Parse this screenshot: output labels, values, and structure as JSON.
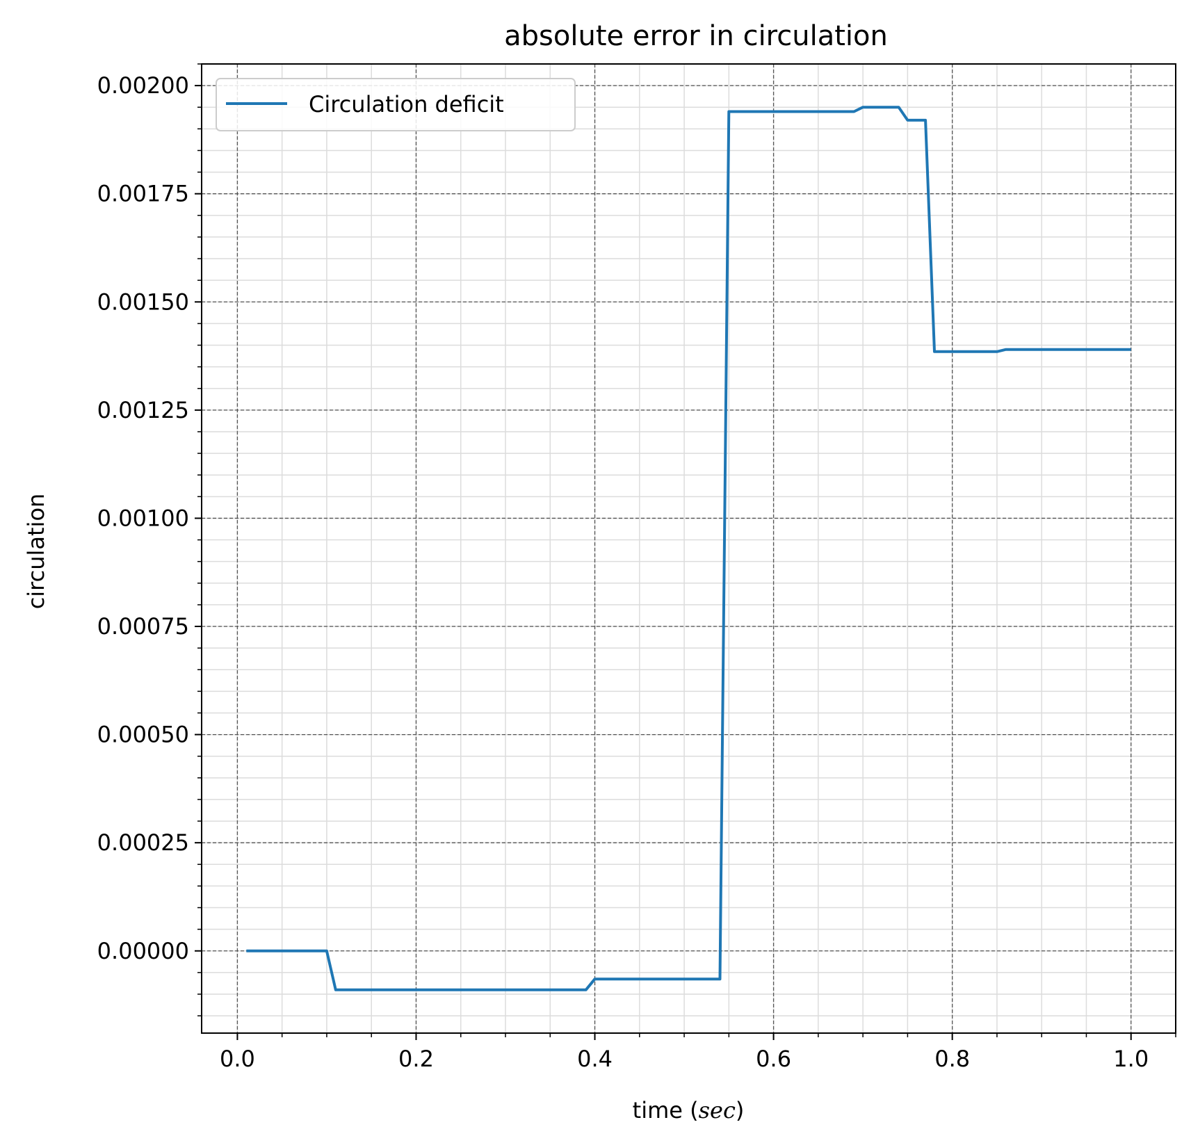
{
  "chart_data": {
    "type": "line",
    "title": "absolute error in circulation",
    "xlabel_main": "time (",
    "xlabel_unit": "sec",
    "xlabel_close": ")",
    "ylabel": "circulation",
    "xlim": [
      -0.04,
      1.05
    ],
    "ylim": [
      -0.00019,
      0.00205
    ],
    "xticks": [
      0.0,
      0.2,
      0.4,
      0.6,
      0.8,
      1.0
    ],
    "xtick_labels": [
      "0.0",
      "0.2",
      "0.4",
      "0.6",
      "0.8",
      "1.0"
    ],
    "yticks": [
      0.0,
      0.00025,
      0.0005,
      0.00075,
      0.001,
      0.00125,
      0.0015,
      0.00175,
      0.002
    ],
    "ytick_labels": [
      "0.00000",
      "0.00025",
      "0.00050",
      "0.00075",
      "0.00100",
      "0.00125",
      "0.00150",
      "0.00175",
      "0.00200"
    ],
    "grid": true,
    "minor_grid": true,
    "legend_position": "top-left",
    "series": [
      {
        "name": "Circulation deficit",
        "color": "#1f77b4",
        "x": [
          0.01,
          0.1,
          0.11,
          0.39,
          0.4,
          0.54,
          0.55,
          0.69,
          0.7,
          0.74,
          0.75,
          0.77,
          0.78,
          0.85,
          0.86,
          1.0
        ],
        "y": [
          0.0,
          0.0,
          -9e-05,
          -9e-05,
          -6.5e-05,
          -6.5e-05,
          0.00194,
          0.00194,
          0.00195,
          0.00195,
          0.00192,
          0.00192,
          0.001385,
          0.001385,
          0.00139,
          0.00139
        ]
      }
    ]
  }
}
